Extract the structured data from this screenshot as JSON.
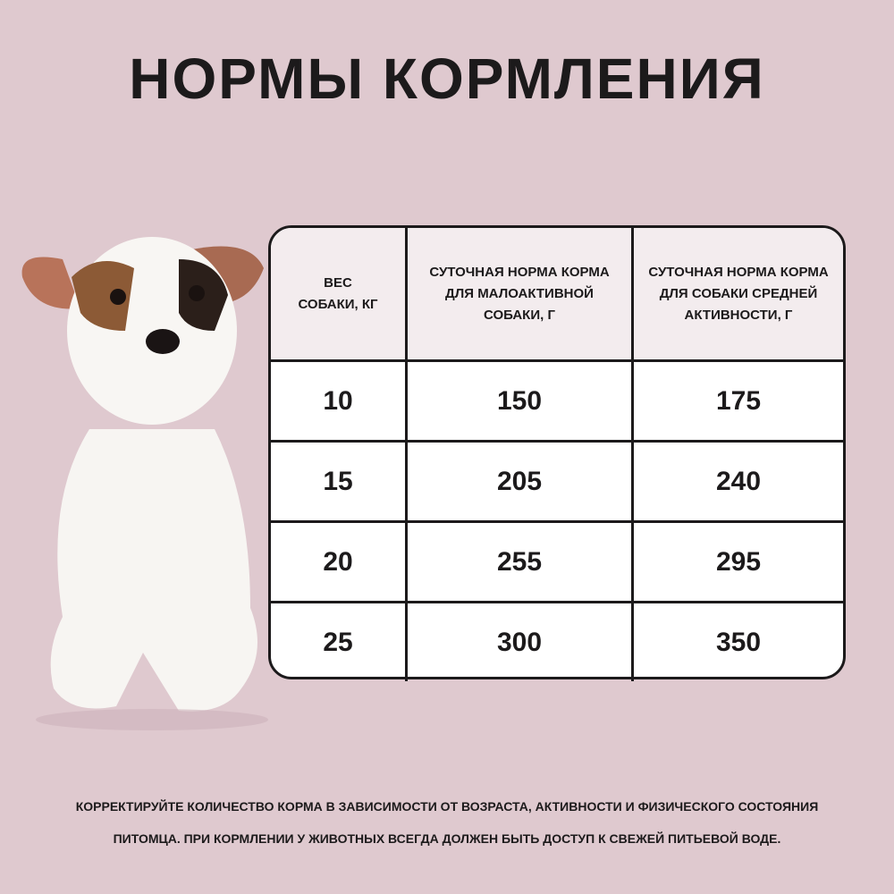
{
  "title": "НОРМЫ КОРМЛЕНИЯ",
  "table": {
    "headers": [
      "ВЕС\nСОБАКИ, КГ",
      "СУТОЧНАЯ НОРМА КОРМА\nДЛЯ МАЛОАКТИВНОЙ\nСОБАКИ, Г",
      "СУТОЧНАЯ НОРМА КОРМА\nДЛЯ СОБАКИ СРЕДНЕЙ\nАКТИВНОСТИ, Г"
    ],
    "rows": [
      [
        "10",
        "150",
        "175"
      ],
      [
        "15",
        "205",
        "240"
      ],
      [
        "20",
        "255",
        "295"
      ],
      [
        "25",
        "300",
        "350"
      ]
    ]
  },
  "footer": {
    "line1": "КОРРЕКТИРУЙТЕ КОЛИЧЕСТВО КОРМА В ЗАВИСИМОСТИ ОТ ВОЗРАСТА, АКТИВНОСТИ И ФИЗИЧЕСКОГО СОСТОЯНИЯ",
    "line2": "ПИТОМЦА. ПРИ КОРМЛЕНИИ У ЖИВОТНЫХ ВСЕГДА ДОЛЖЕН БЫТЬ ДОСТУП К СВЕЖЕЙ ПИТЬЕВОЙ ВОДЕ."
  },
  "colors": {
    "background": "#dfc9cf",
    "header_cell": "#f3ecee",
    "text": "#1c1a1b"
  }
}
